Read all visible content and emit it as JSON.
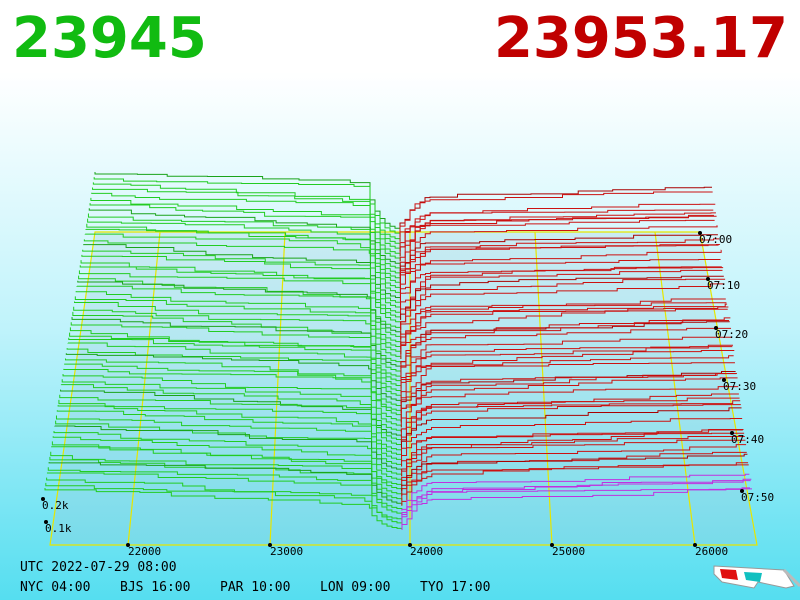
{
  "header": {
    "bid": "23945",
    "ask": "23953.17"
  },
  "price_axis": {
    "labels": [
      "22000",
      "23000",
      "24000",
      "25000",
      "26000"
    ]
  },
  "volume_axis": {
    "labels": [
      "0.2k",
      "0.1k"
    ]
  },
  "time_axis": {
    "labels": [
      "07:00",
      "07:10",
      "07:20",
      "07:30",
      "07:40",
      "07:50"
    ]
  },
  "footer": {
    "utc": "UTC 2022-07-29 08:00",
    "cities": [
      "NYC 04:00",
      "BJS 16:00",
      "PAR 10:00",
      "LON 09:00",
      "TYO 17:00"
    ]
  }
}
